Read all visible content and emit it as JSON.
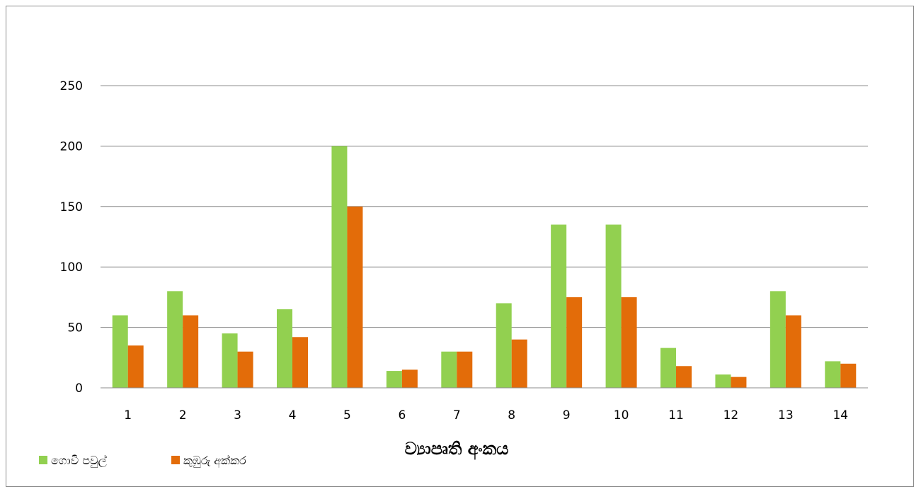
{
  "chart_data": {
    "type": "bar",
    "categories": [
      "1",
      "2",
      "3",
      "4",
      "5",
      "6",
      "7",
      "8",
      "9",
      "10",
      "11",
      "12",
      "13",
      "14"
    ],
    "series": [
      {
        "name": "ගොවි පවුල්",
        "values": [
          60,
          80,
          45,
          65,
          200,
          14,
          30,
          70,
          135,
          135,
          33,
          11,
          80,
          22
        ],
        "color": "#92d050"
      },
      {
        "name": "කුඹුරු අක්කර",
        "values": [
          35,
          60,
          30,
          42,
          150,
          15,
          30,
          40,
          75,
          75,
          18,
          9,
          60,
          20
        ],
        "color": "#e36c09"
      }
    ],
    "title": "",
    "xlabel": "ව්‍යාපෘති අංකය",
    "ylabel": "",
    "ylim": [
      0,
      250
    ],
    "yticks": [
      "0",
      "50",
      "100",
      "150",
      "200",
      "250"
    ],
    "grid": true,
    "legend_position": "bottom-left"
  }
}
